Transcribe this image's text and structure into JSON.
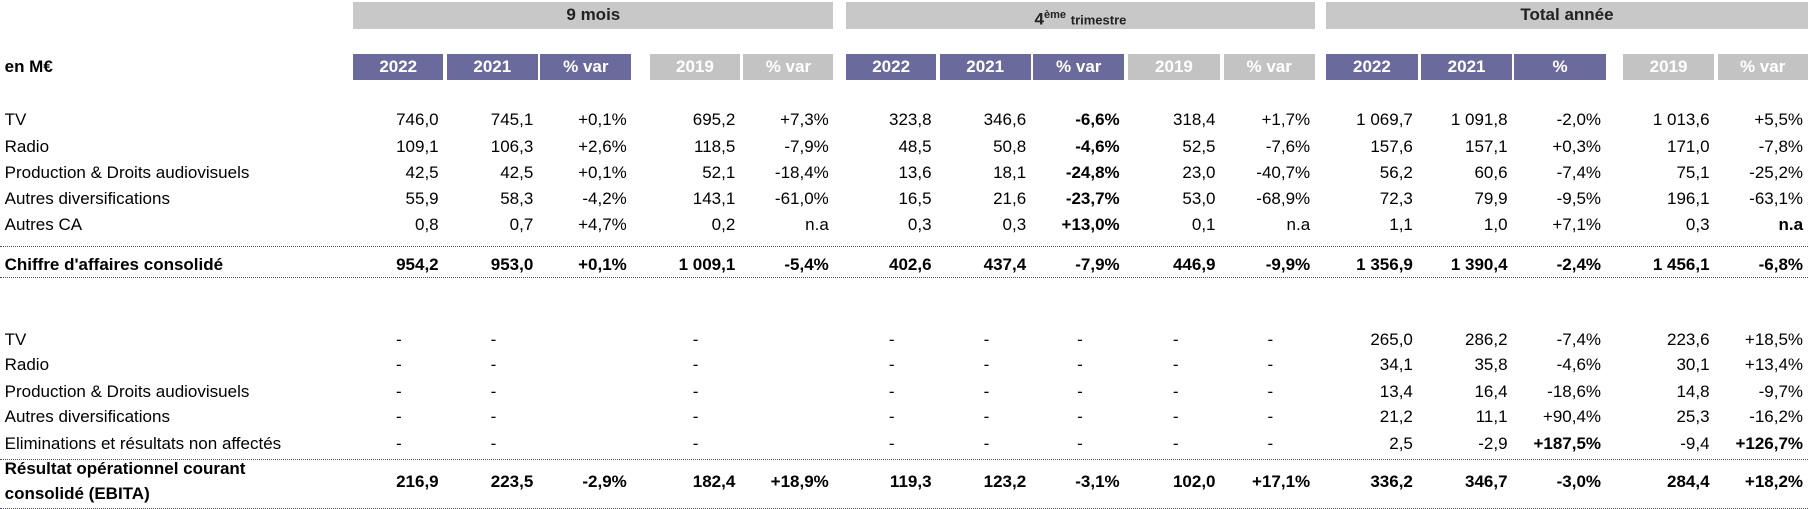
{
  "header": {
    "unit": "en M€",
    "groups": [
      {
        "label": "9 mois"
      },
      {
        "number": "4",
        "sup": "ème",
        "rest": "trimestre"
      },
      {
        "label": "Total année"
      }
    ]
  },
  "columns": [
    {
      "label": "2022",
      "style": "primary"
    },
    {
      "label": "2021",
      "style": "primary"
    },
    {
      "label": "% var",
      "style": "primary"
    },
    {
      "label": "2019",
      "style": "secondary"
    },
    {
      "label": "% var",
      "style": "secondary"
    },
    {
      "label": "2022",
      "style": "primary"
    },
    {
      "label": "2021",
      "style": "primary"
    },
    {
      "label": "% var",
      "style": "primary"
    },
    {
      "label": "2019",
      "style": "secondary"
    },
    {
      "label": "% var",
      "style": "secondary"
    },
    {
      "label": "2022",
      "style": "primary"
    },
    {
      "label": "2021",
      "style": "primary"
    },
    {
      "label": "%",
      "style": "primary"
    },
    {
      "label": "2019",
      "style": "secondary"
    },
    {
      "label": "% var",
      "style": "secondary"
    }
  ],
  "table": {
    "rows": [
      {
        "label": [
          "TV"
        ],
        "cells": [
          "746,0",
          "745,1",
          "+0,1%",
          "695,2",
          "+7,3%",
          "323,8",
          "346,6",
          "-6,6%",
          "318,4",
          "+1,7%",
          "1 069,7",
          "1 091,8",
          "-2,0%",
          "1 013,6",
          "+5,5%"
        ],
        "bold": [
          7
        ]
      },
      {
        "label": [
          "Radio"
        ],
        "cells": [
          "109,1",
          "106,3",
          "+2,6%",
          "118,5",
          "-7,9%",
          "48,5",
          "50,8",
          "-4,6%",
          "52,5",
          "-7,6%",
          "157,6",
          "157,1",
          "+0,3%",
          "171,0",
          "-7,8%"
        ],
        "bold": [
          7
        ]
      },
      {
        "label": [
          "Production & Droits audiovisuels"
        ],
        "cells": [
          "42,5",
          "42,5",
          "+0,1%",
          "52,1",
          "-18,4%",
          "13,6",
          "18,1",
          "-24,8%",
          "23,0",
          "-40,7%",
          "56,2",
          "60,6",
          "-7,4%",
          "75,1",
          "-25,2%"
        ],
        "bold": [
          7
        ]
      },
      {
        "label": [
          "Autres diversifications"
        ],
        "cells": [
          "55,9",
          "58,3",
          "-4,2%",
          "143,1",
          "-61,0%",
          "16,5",
          "21,6",
          "-23,7%",
          "53,0",
          "-68,9%",
          "72,3",
          "79,9",
          "-9,5%",
          "196,1",
          "-63,1%"
        ],
        "bold": [
          7
        ]
      },
      {
        "label": [
          "Autres CA"
        ],
        "cells": [
          "0,8",
          "0,7",
          "+4,7%",
          "0,2",
          "n.a",
          "0,3",
          "0,3",
          "+13,0%",
          "0,1",
          "n.a",
          "1,1",
          "1,0",
          "+7,1%",
          "0,3",
          "n.a"
        ],
        "bold": [
          7,
          14
        ]
      },
      {
        "label": [
          "Chiffre d'affaires consolidé"
        ],
        "cells": [
          "954,2",
          "953,0",
          "+0,1%",
          "1 009,1",
          "-5,4%",
          "402,6",
          "437,4",
          "-7,9%",
          "446,9",
          "-9,9%",
          "1 356,9",
          "1 390,4",
          "-2,4%",
          "1 456,1",
          "-6,8%"
        ],
        "bold": [
          0,
          1,
          2,
          3,
          4,
          5,
          6,
          7,
          8,
          9,
          10,
          11,
          12,
          13,
          14
        ],
        "total": true
      },
      {
        "label": [
          "TV"
        ],
        "cells": [
          "-",
          "-",
          null,
          "-",
          null,
          "-",
          "-",
          "-",
          "-",
          "-",
          "265,0",
          "286,2",
          "-7,4%",
          "223,6",
          "+18,5%"
        ],
        "bold": []
      },
      {
        "label": [
          "Radio"
        ],
        "cells": [
          "-",
          "-",
          null,
          "-",
          null,
          "-",
          "-",
          "-",
          "-",
          "-",
          "34,1",
          "35,8",
          "-4,6%",
          "30,1",
          "+13,4%"
        ],
        "bold": []
      },
      {
        "label": [
          "Production & Droits audiovisuels"
        ],
        "cells": [
          "-",
          "-",
          null,
          "-",
          null,
          "-",
          "-",
          "-",
          "-",
          "-",
          "13,4",
          "16,4",
          "-18,6%",
          "14,8",
          "-9,7%"
        ],
        "bold": []
      },
      {
        "label": [
          "Autres diversifications"
        ],
        "cells": [
          "-",
          "-",
          null,
          "-",
          null,
          "-",
          "-",
          "-",
          "-",
          "-",
          "21,2",
          "11,1",
          "+90,4%",
          "25,3",
          "-16,2%"
        ],
        "bold": []
      },
      {
        "label": [
          "Eliminations et résultats non affectés"
        ],
        "cells": [
          "-",
          "-",
          null,
          "-",
          null,
          "-",
          "-",
          "-",
          "-",
          "-",
          "2,5",
          "-2,9",
          "+187,5%",
          "-9,4",
          "+126,7%"
        ],
        "bold": [
          12,
          14
        ]
      },
      {
        "label": [
          "Résultat opérationnel courant",
          "consolidé (EBITA)"
        ],
        "cells": [
          "216,9",
          "223,5",
          "-2,9%",
          "182,4",
          "+18,9%",
          "119,3",
          "123,2",
          "-3,1%",
          "102,0",
          "+17,1%",
          "336,2",
          "346,7",
          "-3,0%",
          "284,4",
          "+18,2%"
        ],
        "bold": [
          0,
          1,
          2,
          3,
          4,
          5,
          6,
          7,
          8,
          9,
          10,
          11,
          12,
          13,
          14
        ],
        "total": true
      }
    ]
  }
}
